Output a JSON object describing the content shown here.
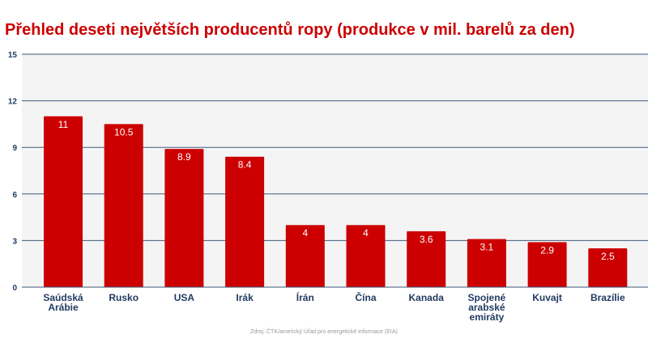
{
  "chart_data": {
    "type": "bar",
    "title": "Přehled deseti největších producentů ropy (produkce v mil. barelů za den)",
    "categories": [
      "Saúdská Arábie",
      "Rusko",
      "USA",
      "Irák",
      "Írán",
      "Čína",
      "Kanada",
      "Spojené arabské emiráty",
      "Kuvajt",
      "Brazílie"
    ],
    "category_lines": [
      [
        "Saúdská",
        "Arábie"
      ],
      [
        "Rusko"
      ],
      [
        "USA"
      ],
      [
        "Irák"
      ],
      [
        "Írán"
      ],
      [
        "Čína"
      ],
      [
        "Kanada"
      ],
      [
        "Spojené",
        "arabské",
        "emiráty"
      ],
      [
        "Kuvajt"
      ],
      [
        "Brazílie"
      ]
    ],
    "values": [
      11,
      10.5,
      8.9,
      8.4,
      4,
      4,
      3.6,
      3.1,
      2.9,
      2.5
    ],
    "value_labels": [
      "11",
      "10.5",
      "8.9",
      "8.4",
      "4",
      "4",
      "3.6",
      "3.1",
      "2.9",
      "2.5"
    ],
    "ylim": [
      0,
      15
    ],
    "yticks": [
      "0",
      "3",
      "6",
      "9",
      "12",
      "15"
    ],
    "grid": true,
    "xlabel": "",
    "ylabel": "",
    "colors": {
      "bar": "#cc0000",
      "title": "#cc0000",
      "axis_labels": "#1f3a5f",
      "grid": "#3d5a7a",
      "plot_bg": "#f4f4f4"
    },
    "source": "Zdroj: ČTK/americký Úřad pro energetické informace (EIA)"
  }
}
